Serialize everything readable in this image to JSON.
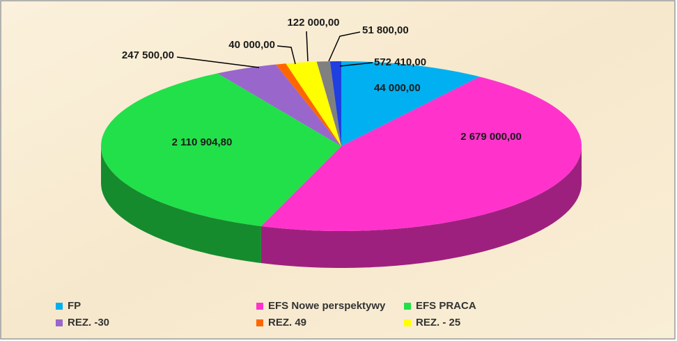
{
  "chart_data": {
    "type": "pie3d",
    "categories": [
      "FP",
      "EFS Nowe perspektywy",
      "EFS PRACA",
      "REZ. -30",
      "REZ. 49",
      "REZ. - 25",
      null,
      null
    ],
    "values": [
      572410,
      2679000,
      2110904.8,
      247500,
      40000,
      122000,
      51800,
      44000
    ],
    "value_labels": [
      "572 410,00",
      "2 679 000,00",
      "2 110 904,80",
      "247 500,00",
      "40 000,00",
      "122 000,00",
      "51 800,00",
      "44 000,00"
    ],
    "colors": [
      "#00b0f0",
      "#ff33cc",
      "#22e04a",
      "#9966cc",
      "#ff6600",
      "#ffff00",
      "#808080",
      "#1f3fe0"
    ],
    "legend": "bottom"
  }
}
